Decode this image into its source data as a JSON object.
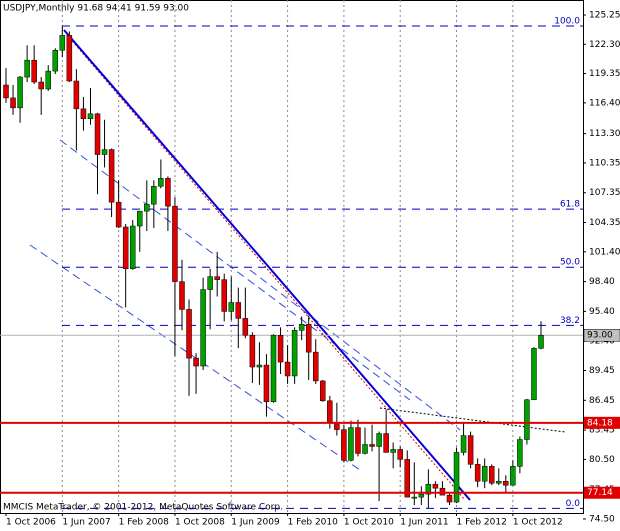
{
  "chart_data": {
    "type": "candlestick",
    "title": "USDJPY,Monthly  91.68 94.41 91.59 93.00",
    "footer_note": "MMCIS MetaTrader, © 2001-2012, MetaQuotes Software Corp.",
    "categories": [
      "1 Oct 2006",
      null,
      null,
      null,
      null,
      null,
      null,
      null,
      "1 Jun 2007",
      null,
      null,
      null,
      null,
      null,
      null,
      null,
      "1 Feb 2008",
      null,
      null,
      null,
      null,
      null,
      null,
      null,
      "1 Oct 2008",
      null,
      null,
      null,
      null,
      null,
      null,
      null,
      "1 Jun 2009",
      null,
      null,
      null,
      null,
      null,
      null,
      null,
      "1 Feb 2010",
      null,
      null,
      null,
      null,
      null,
      null,
      null,
      "1 Oct 2010",
      null,
      null,
      null,
      null,
      null,
      null,
      null,
      "1 Jun 2011",
      null,
      null,
      null,
      null,
      null,
      null,
      null,
      "1 Feb 2012",
      null,
      null,
      null,
      null,
      null,
      null,
      null,
      "1 Oct 2012",
      null,
      null,
      null,
      null
    ],
    "open": [
      118.2,
      116.9,
      115.9,
      119.0,
      120.7,
      118.5,
      117.8,
      119.6,
      121.7,
      123.2,
      118.6,
      115.8,
      114.8,
      115.3,
      111.2,
      111.7,
      106.4,
      103.9,
      99.7,
      104.0,
      105.5,
      106.2,
      108.0,
      108.8,
      106.0,
      98.4,
      95.6,
      90.7,
      89.9,
      97.6,
      98.9,
      98.6,
      95.4,
      96.3,
      94.7,
      93.0,
      89.8,
      90.0,
      86.3,
      93.0,
      90.3,
      88.9,
      93.5,
      94.1,
      91.3,
      88.4,
      86.4,
      84.2,
      83.5,
      80.4,
      83.7,
      81.1,
      82.0,
      81.8,
      83.1,
      81.2,
      81.5,
      80.5,
      76.7,
      76.7,
      77.0,
      78.0,
      77.6,
      76.9,
      76.2,
      81.2,
      82.9,
      80.0,
      78.3,
      79.8,
      78.1,
      78.3,
      77.9,
      79.8,
      82.5,
      86.5,
      91.68
    ],
    "high": [
      119.9,
      118.2,
      119.1,
      122.2,
      122.2,
      119.0,
      120.2,
      121.9,
      124.1,
      123.6,
      119.8,
      117.0,
      117.9,
      115.4,
      114.7,
      111.8,
      108.6,
      104.2,
      104.6,
      105.5,
      108.6,
      108.6,
      110.7,
      109.0,
      106.9,
      100.6,
      96.6,
      91.2,
      98.8,
      99.7,
      101.4,
      99.2,
      98.9,
      97.8,
      97.8,
      93.3,
      92.3,
      91.1,
      93.1,
      93.8,
      92.0,
      93.8,
      94.9,
      94.99,
      92.6,
      88.5,
      86.9,
      86.2,
      84.0,
      84.4,
      84.5,
      83.7,
      84.0,
      83.3,
      85.5,
      82.2,
      81.8,
      81.4,
      80.2,
      77.8,
      79.5,
      78.3,
      78.3,
      77.1,
      81.7,
      84.2,
      83.3,
      80.6,
      80.6,
      80.0,
      79.6,
      78.9,
      80.4,
      82.8,
      86.6,
      91.8,
      94.41
    ],
    "low": [
      116.4,
      115.2,
      114.4,
      118.5,
      118.3,
      115.2,
      117.6,
      119.3,
      121.0,
      118.5,
      111.6,
      113.6,
      114.2,
      107.2,
      109.9,
      104.9,
      103.8,
      95.8,
      99.6,
      101.4,
      103.5,
      103.8,
      107.8,
      103.5,
      90.9,
      93.5,
      86.9,
      87.1,
      89.5,
      93.6,
      96.9,
      94.4,
      94.5,
      91.7,
      92.7,
      88.2,
      88.0,
      84.8,
      86.2,
      89.1,
      88.1,
      88.1,
      92.5,
      88.5,
      88.1,
      86.3,
      83.6,
      82.9,
      80.2,
      80.3,
      80.8,
      81.0,
      81.3,
      76.3,
      81.2,
      79.6,
      79.7,
      76.7,
      75.9,
      75.9,
      75.6,
      76.6,
      76.9,
      75.9,
      76.1,
      80.9,
      79.6,
      77.7,
      77.6,
      77.9,
      77.9,
      77.1,
      77.9,
      79.1,
      82.0,
      86.5,
      91.59
    ],
    "close": [
      116.9,
      115.9,
      119.0,
      120.7,
      118.5,
      117.8,
      119.6,
      121.7,
      123.2,
      118.6,
      115.8,
      114.8,
      115.3,
      111.2,
      111.7,
      106.4,
      103.9,
      99.7,
      104.0,
      105.5,
      106.2,
      108.0,
      108.8,
      106.0,
      98.4,
      95.6,
      90.7,
      89.9,
      97.6,
      98.9,
      98.6,
      95.4,
      96.3,
      94.7,
      93.0,
      89.8,
      90.0,
      86.3,
      93.0,
      90.3,
      88.9,
      93.5,
      94.1,
      91.3,
      88.4,
      86.4,
      84.2,
      83.5,
      80.4,
      83.7,
      81.1,
      82.0,
      81.8,
      83.1,
      81.2,
      81.5,
      80.5,
      76.7,
      76.7,
      77.0,
      78.0,
      77.6,
      76.9,
      76.2,
      81.2,
      82.9,
      80.0,
      78.3,
      79.8,
      78.1,
      78.3,
      77.9,
      79.8,
      82.5,
      86.5,
      91.68,
      93.0
    ],
    "up_color": "#00a000",
    "down_color": "#e00000",
    "ylim": [
      75.1,
      126.76
    ],
    "yticks": [
      125.25,
      {
        "value": 122.3,
        "label": "122.30"
      },
      119.35,
      {
        "value": 116.4,
        "label": "116.40"
      },
      {
        "value": 113.3,
        "label": "113.30"
      },
      110.35,
      107.35,
      104.35,
      {
        "value": 101.4,
        "label": "101.40"
      },
      {
        "value": 98.4,
        "label": "98.40"
      },
      {
        "value": 95.4,
        "label": "95.40"
      },
      {
        "value": 92.4,
        "label": "92.40"
      },
      89.45,
      86.45,
      83.45,
      {
        "value": 80.5,
        "label": "80.50"
      },
      77.45,
      {
        "value": 74.5,
        "label": "74.50"
      }
    ],
    "fib_levels": [
      {
        "label": "100.0",
        "value": 124.14
      },
      {
        "label": "61.8",
        "value": 105.7
      },
      {
        "label": "50.0",
        "value": 99.85
      },
      {
        "label": "38.2",
        "value": 94.0
      },
      {
        "label": "0.0",
        "value": 75.56
      }
    ],
    "fib_color": "#0000c0",
    "price_lines": [
      84.18,
      77.14
    ],
    "price_line_color": "#e00000",
    "current_price": {
      "value": 93.0,
      "label": "93.00"
    },
    "grid": true
  }
}
